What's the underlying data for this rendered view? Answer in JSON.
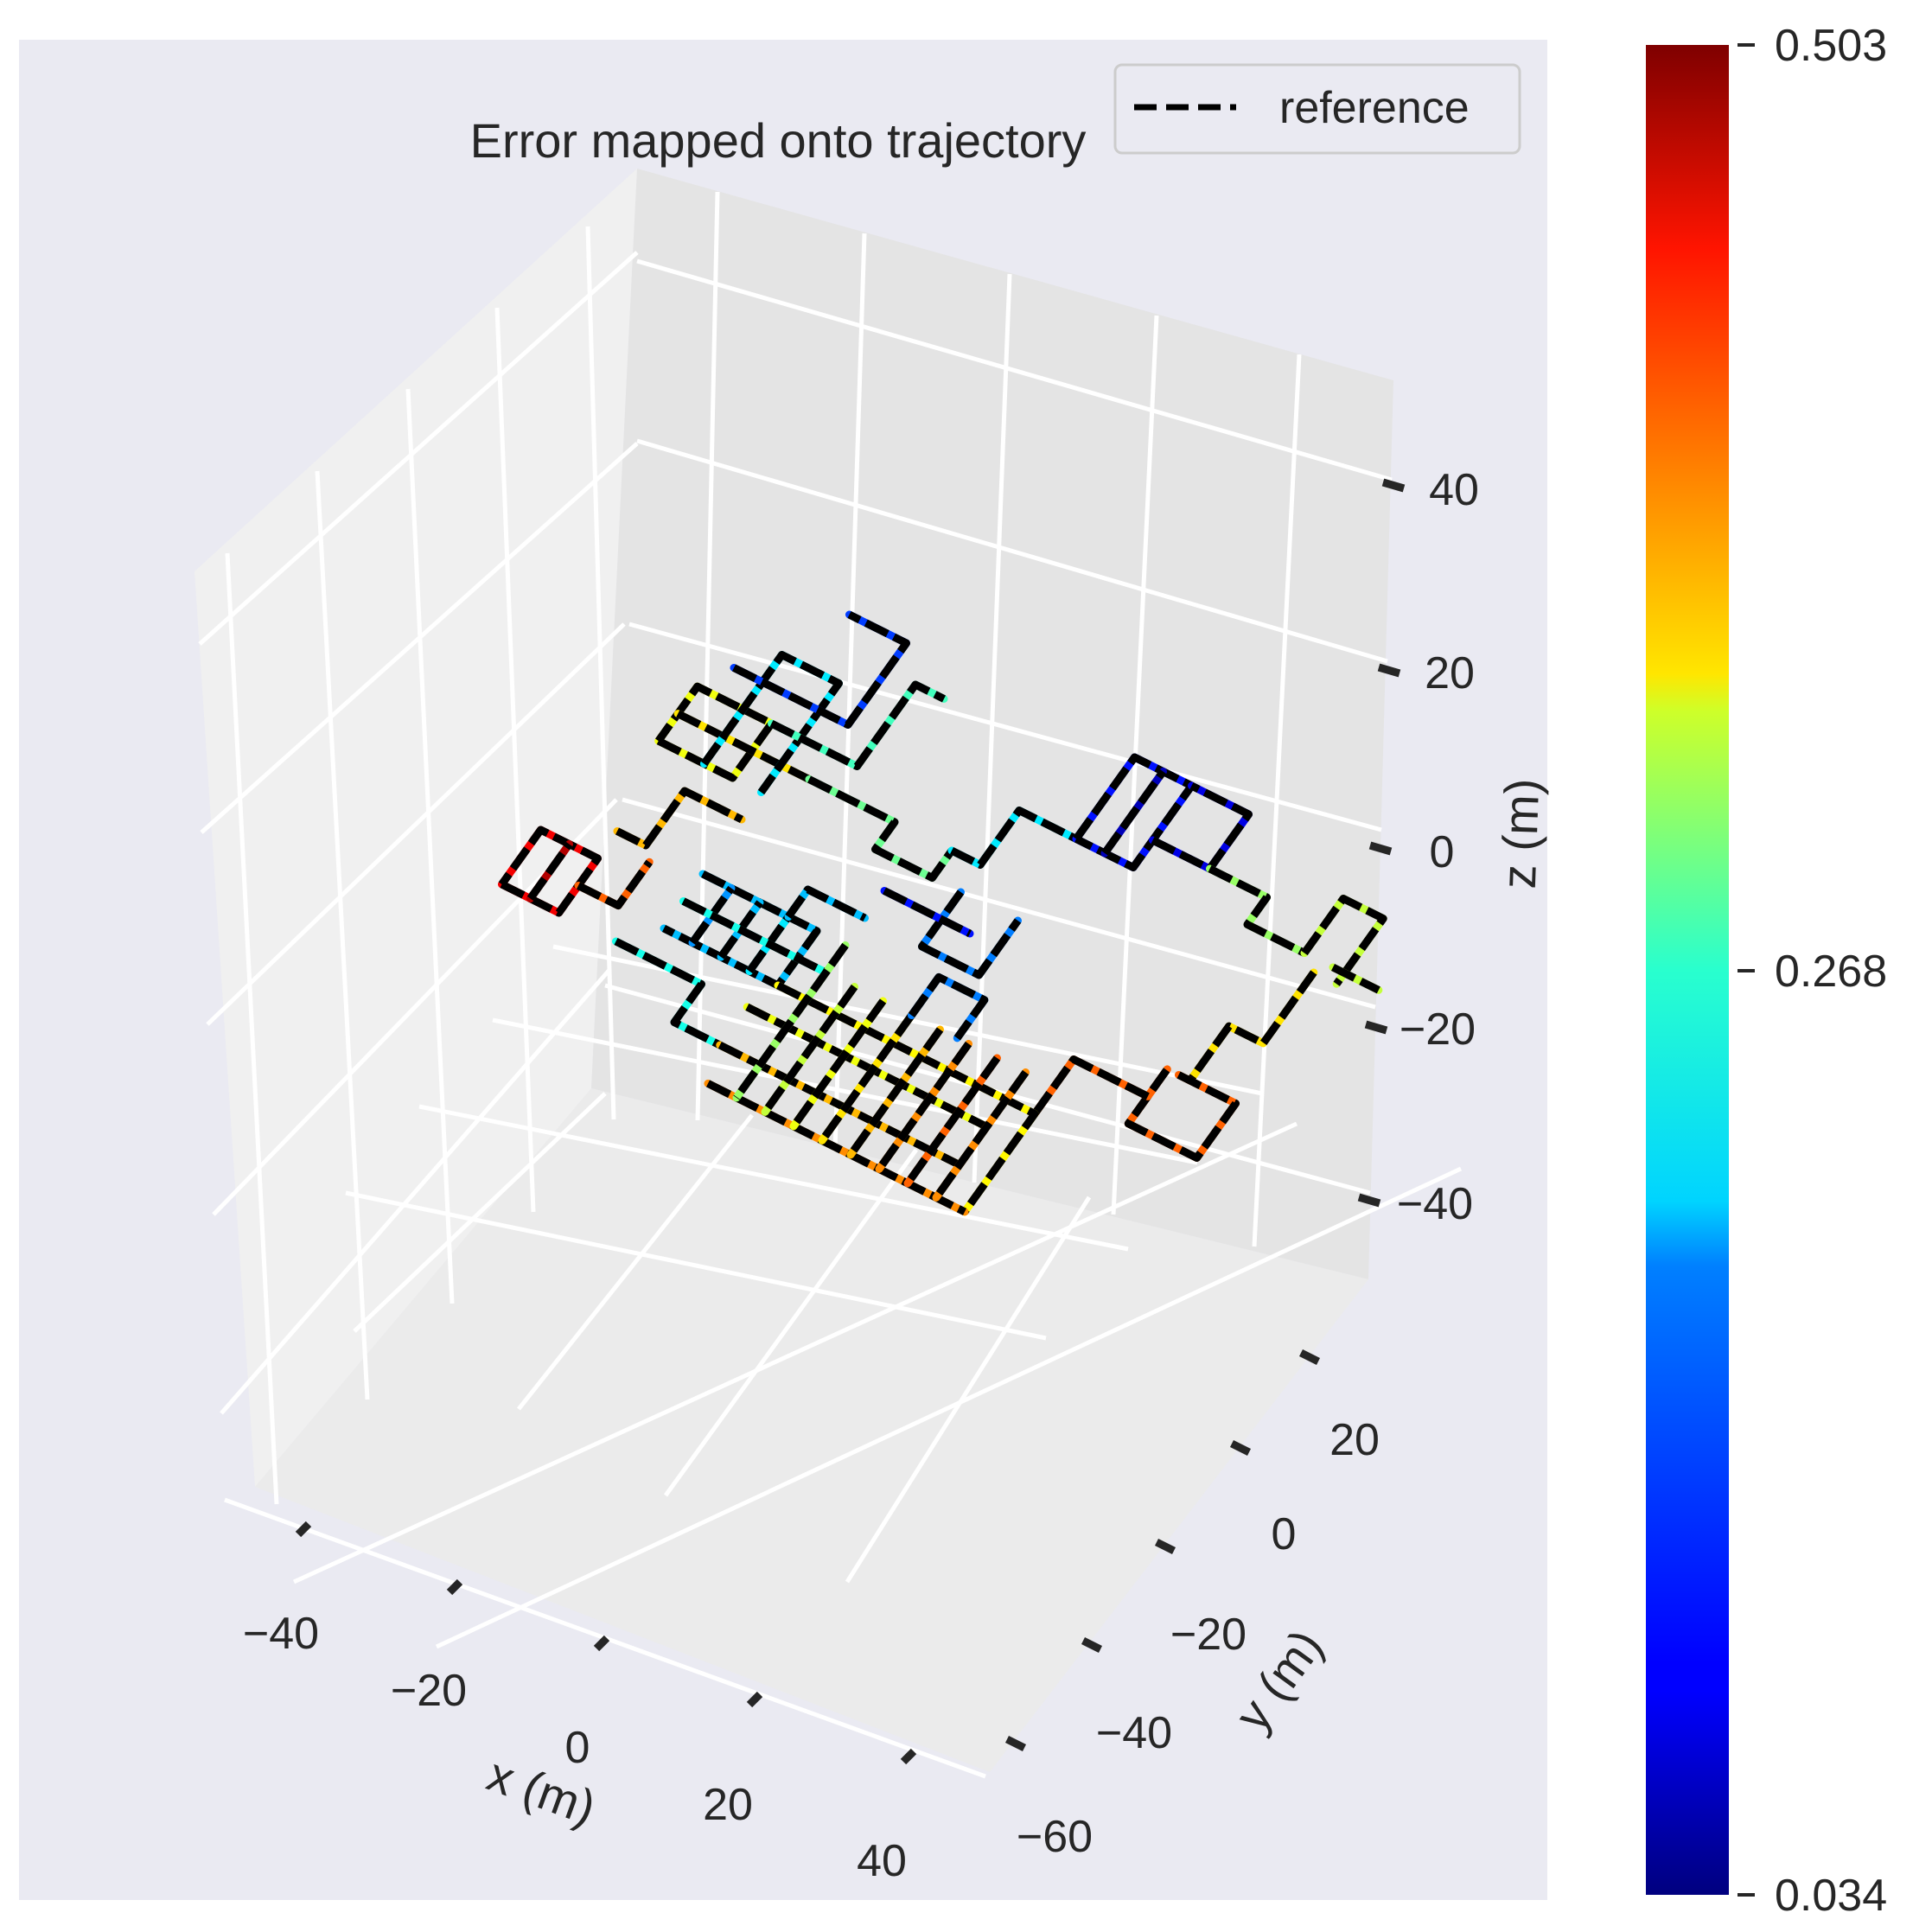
{
  "chart_data": {
    "type": "line",
    "projection": "3d",
    "title": "Error mapped onto trajectory",
    "xlabel": "x (m)",
    "ylabel": "y (m)",
    "zlabel": "z (m)",
    "x_ticks": [
      "−40",
      "−20",
      "0",
      "20",
      "40"
    ],
    "y_ticks": [
      "−60",
      "−40",
      "−20",
      "0",
      "20"
    ],
    "z_ticks": [
      "−40",
      "−20",
      "0",
      "20",
      "40"
    ],
    "legend": {
      "entries": [
        "reference"
      ],
      "placement": "top-right",
      "line_style": "dashed",
      "color": "#000000"
    },
    "colorbar": {
      "colormap": "jet",
      "min": 0.034,
      "max": 0.503,
      "ticks": [
        "0.503",
        "0.268",
        "0.034"
      ]
    },
    "grid": true,
    "series": [
      {
        "name": "reference",
        "style": "dashed",
        "color": "#000000"
      }
    ],
    "trajectory_segments": [
      {
        "points": [
          [
            -45,
            -5
          ],
          [
            -35,
            -5
          ],
          [
            -35,
            5
          ],
          [
            -45,
            5
          ],
          [
            -45,
            -5
          ]
        ],
        "error": 0.45
      },
      {
        "points": [
          [
            -40,
            -5
          ],
          [
            -40,
            5
          ]
        ],
        "error": 0.48
      },
      {
        "points": [
          [
            -35,
            0
          ],
          [
            -28,
            0
          ],
          [
            -28,
            8
          ]
        ],
        "error": 0.4
      },
      {
        "points": [
          [
            -35,
            10
          ],
          [
            -30,
            10
          ],
          [
            -30,
            20
          ],
          [
            -20,
            20
          ]
        ],
        "error": 0.36
      },
      {
        "points": [
          [
            -38,
            25
          ],
          [
            -25,
            25
          ],
          [
            -25,
            35
          ],
          [
            -38,
            35
          ],
          [
            -38,
            25
          ]
        ],
        "error": 0.32
      },
      {
        "points": [
          [
            -38,
            30
          ],
          [
            -15,
            30
          ]
        ],
        "error": 0.34
      },
      {
        "points": [
          [
            -30,
            25
          ],
          [
            -30,
            45
          ],
          [
            -20,
            45
          ],
          [
            -20,
            25
          ]
        ],
        "error": 0.2
      },
      {
        "points": [
          [
            -35,
            40
          ],
          [
            -15,
            40
          ],
          [
            -15,
            55
          ],
          [
            -25,
            55
          ]
        ],
        "error": 0.12
      },
      {
        "points": [
          [
            -25,
            35
          ],
          [
            -10,
            35
          ],
          [
            -10,
            50
          ],
          [
            -5,
            50
          ]
        ],
        "error": 0.24
      },
      {
        "points": [
          [
            -15,
            30
          ],
          [
            0,
            30
          ],
          [
            0,
            25
          ],
          [
            10,
            25
          ],
          [
            10,
            30
          ]
        ],
        "error": 0.26
      },
      {
        "points": [
          [
            10,
            30
          ],
          [
            15,
            30
          ],
          [
            15,
            40
          ],
          [
            25,
            40
          ]
        ],
        "error": 0.2
      },
      {
        "points": [
          [
            25,
            40
          ],
          [
            25,
            55
          ],
          [
            35,
            55
          ],
          [
            35,
            40
          ],
          [
            25,
            40
          ]
        ],
        "error": 0.1
      },
      {
        "points": [
          [
            30,
            40
          ],
          [
            30,
            55
          ]
        ],
        "error": 0.06
      },
      {
        "points": [
          [
            35,
            45
          ],
          [
            45,
            45
          ],
          [
            45,
            55
          ],
          [
            35,
            55
          ]
        ],
        "error": 0.08
      },
      {
        "points": [
          [
            15,
            25
          ],
          [
            15,
            15
          ],
          [
            25,
            15
          ],
          [
            25,
            25
          ]
        ],
        "error": 0.15
      },
      {
        "points": [
          [
            5,
            20
          ],
          [
            20,
            20
          ]
        ],
        "error": 0.1
      },
      {
        "points": [
          [
            45,
            45
          ],
          [
            55,
            45
          ],
          [
            55,
            40
          ],
          [
            65,
            40
          ]
        ],
        "error": 0.28
      },
      {
        "points": [
          [
            65,
            40
          ],
          [
            65,
            50
          ],
          [
            72,
            50
          ],
          [
            72,
            38
          ]
        ],
        "error": 0.3
      },
      {
        "points": [
          [
            70,
            40
          ],
          [
            78,
            40
          ]
        ],
        "error": 0.3
      },
      {
        "points": [
          [
            68,
            38
          ],
          [
            68,
            25
          ],
          [
            62,
            25
          ],
          [
            62,
            15
          ]
        ],
        "error": 0.34
      },
      {
        "points": [
          [
            60,
            15
          ],
          [
            70,
            15
          ],
          [
            70,
            5
          ],
          [
            58,
            5
          ],
          [
            58,
            15
          ]
        ],
        "error": 0.4
      },
      {
        "points": [
          [
            58,
            10
          ],
          [
            45,
            10
          ],
          [
            45,
            0
          ]
        ],
        "error": 0.4
      },
      {
        "points": [
          [
            -20,
            10
          ],
          [
            0,
            10
          ],
          [
            0,
            0
          ],
          [
            -20,
            0
          ]
        ],
        "error": 0.18
      },
      {
        "points": [
          [
            -15,
            0
          ],
          [
            -15,
            10
          ]
        ],
        "error": 0.16
      },
      {
        "points": [
          [
            -10,
            0
          ],
          [
            -10,
            10
          ]
        ],
        "error": 0.18
      },
      {
        "points": [
          [
            -5,
            0
          ],
          [
            -5,
            10
          ]
        ],
        "error": 0.2
      },
      {
        "points": [
          [
            -20,
            5
          ],
          [
            5,
            5
          ]
        ],
        "error": 0.22
      },
      {
        "points": [
          [
            -25,
            -5
          ],
          [
            -10,
            -5
          ],
          [
            -10,
            -12
          ],
          [
            -2,
            -12
          ]
        ],
        "error": 0.22
      },
      {
        "points": [
          [
            0,
            0
          ],
          [
            45,
            0
          ],
          [
            45,
            -18
          ]
        ],
        "error": 0.33
      },
      {
        "points": [
          [
            -2,
            -5
          ],
          [
            40,
            -5
          ]
        ],
        "error": 0.32
      },
      {
        "points": [
          [
            -2,
            -12
          ],
          [
            40,
            -12
          ]
        ],
        "error": 0.36
      },
      {
        "points": [
          [
            0,
            -18
          ],
          [
            45,
            -18
          ]
        ],
        "error": 0.38
      },
      {
        "points": [
          [
            5,
            10
          ],
          [
            5,
            -18
          ]
        ],
        "error": 0.28
      },
      {
        "points": [
          [
            10,
            5
          ],
          [
            10,
            -18
          ]
        ],
        "error": 0.3
      },
      {
        "points": [
          [
            15,
            5
          ],
          [
            15,
            -18
          ]
        ],
        "error": 0.32
      },
      {
        "points": [
          [
            20,
            5
          ],
          [
            20,
            -18
          ]
        ],
        "error": 0.34
      },
      {
        "points": [
          [
            25,
            5
          ],
          [
            25,
            -18
          ]
        ],
        "error": 0.36
      },
      {
        "points": [
          [
            30,
            5
          ],
          [
            30,
            -18
          ]
        ],
        "error": 0.38
      },
      {
        "points": [
          [
            35,
            5
          ],
          [
            35,
            -18
          ]
        ],
        "error": 0.4
      },
      {
        "points": [
          [
            40,
            5
          ],
          [
            40,
            -18
          ]
        ],
        "error": 0.38
      },
      {
        "points": [
          [
            -5,
            10
          ],
          [
            -5,
            15
          ],
          [
            5,
            15
          ]
        ],
        "error": 0.18
      },
      {
        "points": [
          [
            20,
            5
          ],
          [
            20,
            12
          ],
          [
            28,
            12
          ],
          [
            28,
            5
          ]
        ],
        "error": 0.15
      }
    ]
  }
}
